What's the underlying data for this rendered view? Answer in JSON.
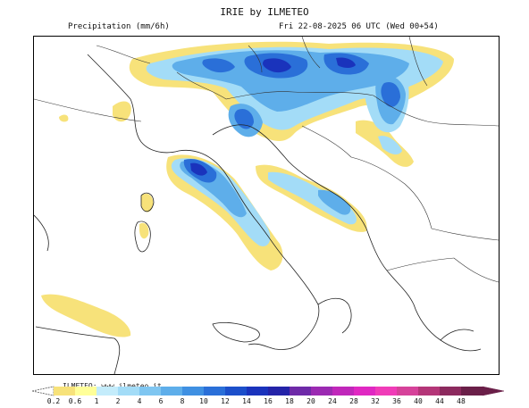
{
  "header": {
    "title": "IRIE by ILMETEO",
    "variable": "Precipitation (mm/6h)",
    "valid_time": "Fri 22-08-2025 06 UTC (Wed 00+54)"
  },
  "footer": {
    "credit": "ILMETEO: www.ilmeteo.it"
  },
  "legend": {
    "ticks": [
      "0.2",
      "0.6",
      "1",
      "2",
      "4",
      "6",
      "8",
      "10",
      "12",
      "14",
      "16",
      "18",
      "20",
      "24",
      "28",
      "32",
      "36",
      "40",
      "44",
      "48"
    ],
    "colors": [
      "#f7e27a",
      "#ffff99",
      "#c4ecfb",
      "#a3dcf7",
      "#7fc6f1",
      "#5eaeea",
      "#3f90e2",
      "#2a6fd8",
      "#1c4fca",
      "#1a33bc",
      "#2423a8",
      "#6e2aa8",
      "#9b2ab2",
      "#c027ba",
      "#e028c2",
      "#f03cb8",
      "#d6429a",
      "#b43678",
      "#8c2a5e",
      "#6a1f48"
    ]
  },
  "colors": {
    "precip_light": "#f7e27a",
    "precip_low": "#a3dcf7",
    "precip_mid": "#5eaeea",
    "precip_high": "#2a6fd8",
    "precip_max": "#1a33bc"
  }
}
